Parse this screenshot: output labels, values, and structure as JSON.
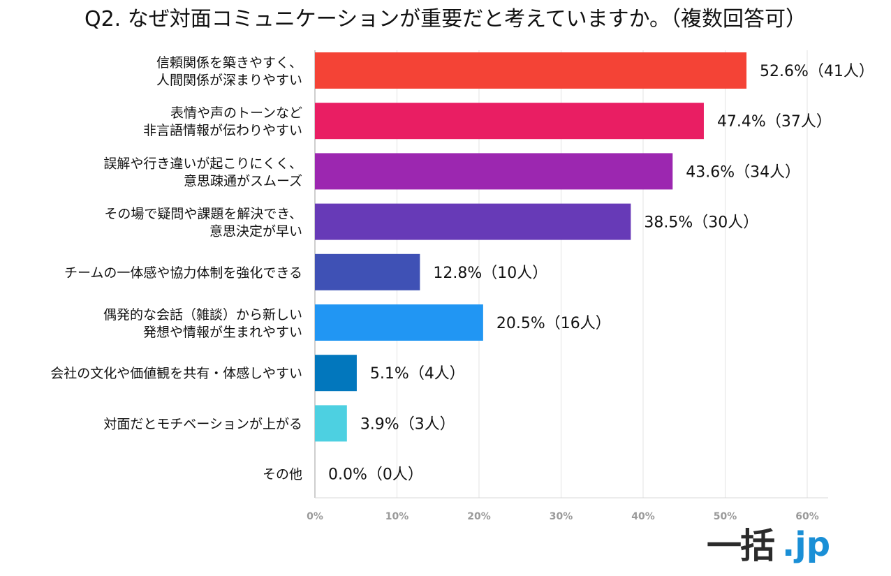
{
  "chart_data": {
    "type": "bar",
    "orientation": "horizontal",
    "title": "Q2. なぜ対面コミュニケーションが重要だと考えていますか。（複数回答可）",
    "categories": [
      [
        "信頼関係を築きやすく、",
        "人間関係が深まりやすい"
      ],
      [
        "表情や声のトーンなど",
        "非言語情報が伝わりやすい"
      ],
      [
        "誤解や行き違いが起こりにくく、",
        "意思疎通がスムーズ"
      ],
      [
        "その場で疑問や課題を解決でき、",
        "意思決定が早い"
      ],
      [
        "チームの一体感や協力体制を強化できる"
      ],
      [
        "偶発的な会話（雑談）から新しい",
        "発想や情報が生まれやすい"
      ],
      [
        "会社の文化や価値観を共有・体感しやすい"
      ],
      [
        "対面だとモチベーションが上がる"
      ],
      [
        "その他"
      ]
    ],
    "values": [
      52.6,
      47.4,
      43.6,
      38.5,
      12.8,
      20.5,
      5.1,
      3.9,
      0.0
    ],
    "value_labels": [
      "52.6%（41人）",
      "47.4%（37人）",
      "43.6%（34人）",
      "38.5%（30人）",
      "12.8%（10人）",
      "20.5%（16人）",
      "5.1%（4人）",
      "3.9%（3人）",
      "0.0%（0人）"
    ],
    "colors": [
      "#f44336",
      "#e91e63",
      "#9c27b0",
      "#673ab7",
      "#3f51b5",
      "#2196f3",
      "#0277bd",
      "#4dd0e1",
      "#26c6da"
    ],
    "xlim": [
      0,
      60
    ],
    "x_ticks": [
      "0%",
      "10%",
      "20%",
      "30%",
      "40%",
      "50%",
      "60%"
    ],
    "grid": true,
    "legend": "none"
  },
  "logo": {
    "kanji": "一括",
    "suffix": ".jp"
  }
}
